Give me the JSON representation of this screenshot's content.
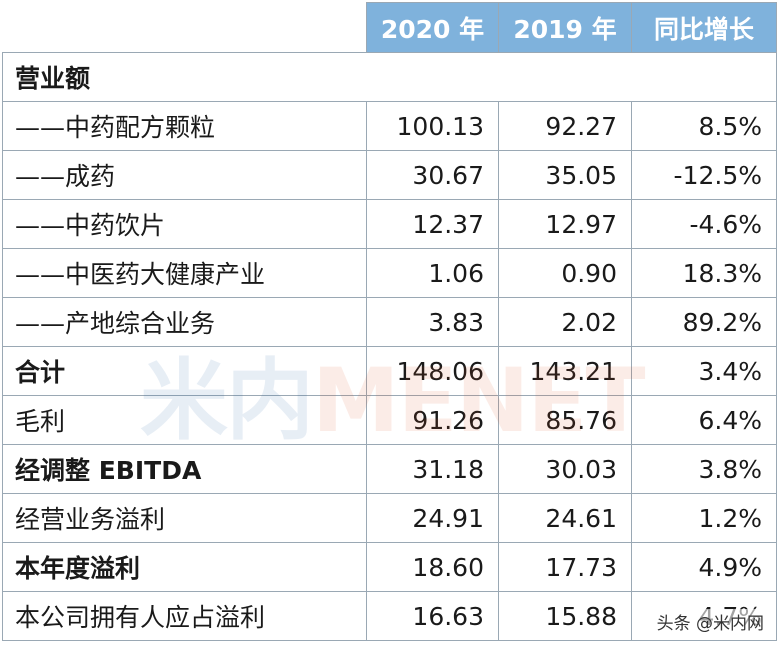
{
  "header": {
    "col_2020": "2020 年",
    "col_2019": "2019 年",
    "col_growth": "同比增长"
  },
  "section_title": "营业额",
  "rows": [
    {
      "label": "——中药配方颗粒",
      "v2020": "100.13",
      "v2019": "92.27",
      "growth": "8.5%",
      "bold": false
    },
    {
      "label": "——成药",
      "v2020": "30.67",
      "v2019": "35.05",
      "growth": "-12.5%",
      "bold": false
    },
    {
      "label": "——中药饮片",
      "v2020": "12.37",
      "v2019": "12.97",
      "growth": "-4.6%",
      "bold": false
    },
    {
      "label": "——中医药大健康产业",
      "v2020": "1.06",
      "v2019": "0.90",
      "growth": "18.3%",
      "bold": false
    },
    {
      "label": "——产地综合业务",
      "v2020": "3.83",
      "v2019": "2.02",
      "growth": "89.2%",
      "bold": false
    },
    {
      "label": "合计",
      "v2020": "148.06",
      "v2019": "143.21",
      "growth": "3.4%",
      "bold": true
    },
    {
      "label": "毛利",
      "v2020": "91.26",
      "v2019": "85.76",
      "growth": "6.4%",
      "bold": false
    },
    {
      "label": "经调整 EBITDA",
      "v2020": "31.18",
      "v2019": "30.03",
      "growth": "3.8%",
      "bold": true
    },
    {
      "label": "经营业务溢利",
      "v2020": "24.91",
      "v2019": "24.61",
      "growth": "1.2%",
      "bold": false
    },
    {
      "label": "本年度溢利",
      "v2020": "18.60",
      "v2019": "17.73",
      "growth": "4.9%",
      "bold": true
    },
    {
      "label": "本公司拥有人应占溢利",
      "v2020": "16.63",
      "v2019": "15.88",
      "growth": "4.7%",
      "bold": false
    }
  ],
  "watermark": {
    "part1": "米内",
    "part2": "MENET"
  },
  "corner_mark": "头条 @米内网",
  "colors": {
    "header_bg": "#7fb2dc",
    "border": "#9aa8b4"
  }
}
